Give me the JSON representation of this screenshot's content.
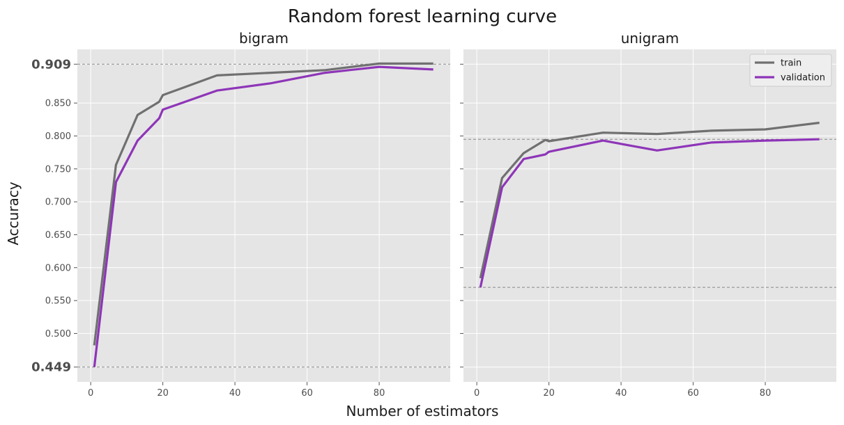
{
  "figure": {
    "title": "Random forest learning curve",
    "xlabel": "Number of estimators",
    "ylabel": "Accuracy"
  },
  "colors": {
    "train": "#707070",
    "validation": "#8e35b8",
    "panel_bg": "#e5e5e5",
    "grid": "#ffffff",
    "ref_line": "#888888"
  },
  "chart_data": [
    {
      "type": "line",
      "title": "bigram",
      "xlim": [
        -3.7,
        99.7
      ],
      "ylim": [
        0.4265,
        0.9315
      ],
      "xticks": [
        0,
        20,
        40,
        60,
        80
      ],
      "xtick_labels": [
        "0",
        "20",
        "40",
        "60",
        "80"
      ],
      "yticks": [
        0.449,
        0.5,
        0.55,
        0.6,
        0.65,
        0.7,
        0.75,
        0.8,
        0.85,
        0.909
      ],
      "ytick_labels": [
        "0.449",
        "0.500",
        "0.550",
        "0.600",
        "0.650",
        "0.700",
        "0.750",
        "0.800",
        "0.850",
        "0.909"
      ],
      "bold_yticks": [
        "0.449",
        "0.909"
      ],
      "ref_lines": [
        0.909,
        0.449
      ],
      "grid": true,
      "series": [
        {
          "name": "train",
          "x": [
            1,
            7,
            13,
            19,
            20,
            35,
            50,
            65,
            80,
            95
          ],
          "y": [
            0.482,
            0.756,
            0.832,
            0.852,
            0.862,
            0.892,
            0.896,
            0.9,
            0.91,
            0.91
          ]
        },
        {
          "name": "validation",
          "x": [
            1,
            7,
            13,
            19,
            20,
            35,
            50,
            65,
            80,
            95
          ],
          "y": [
            0.449,
            0.73,
            0.793,
            0.827,
            0.84,
            0.869,
            0.88,
            0.896,
            0.905,
            0.901
          ]
        }
      ]
    },
    {
      "type": "line",
      "title": "unigram",
      "xlim": [
        -3.7,
        99.7
      ],
      "ylim": [
        0.4265,
        0.9315
      ],
      "xticks": [
        0,
        20,
        40,
        60,
        80
      ],
      "xtick_labels": [
        "0",
        "20",
        "40",
        "60",
        "80"
      ],
      "ref_lines": [
        0.795,
        0.57
      ],
      "grid": true,
      "legend_position": "upper right",
      "series": [
        {
          "name": "train",
          "x": [
            1,
            7,
            13,
            19,
            20,
            35,
            50,
            65,
            80,
            95
          ],
          "y": [
            0.584,
            0.736,
            0.774,
            0.794,
            0.792,
            0.805,
            0.803,
            0.808,
            0.81,
            0.82
          ]
        },
        {
          "name": "validation",
          "x": [
            1,
            7,
            13,
            19,
            20,
            35,
            50,
            65,
            80,
            95
          ],
          "y": [
            0.57,
            0.722,
            0.765,
            0.772,
            0.776,
            0.793,
            0.778,
            0.79,
            0.793,
            0.795
          ]
        }
      ]
    }
  ]
}
